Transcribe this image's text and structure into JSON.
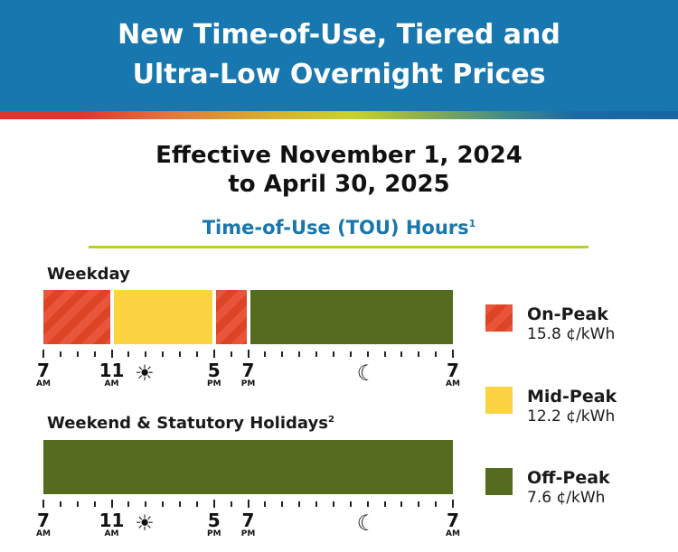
{
  "header": {
    "line1": "New Time-of-Use, Tiered and",
    "line2": "Ultra-Low Overnight Prices"
  },
  "effective": {
    "line1": "Effective November 1, 2024",
    "line2": "to April 30, 2025"
  },
  "tou_heading": {
    "text": "Time-of-Use (TOU) Hours",
    "footnote": "1"
  },
  "weekday": {
    "label": "Weekday",
    "segments": [
      {
        "tier": "on",
        "start": 7,
        "end": 11
      },
      {
        "tier": "mid",
        "start": 11,
        "end": 17
      },
      {
        "tier": "on",
        "start": 17,
        "end": 19
      },
      {
        "tier": "off",
        "start": 19,
        "end": 31
      }
    ]
  },
  "weekend": {
    "label": "Weekend & Statutory Holidays",
    "footnote": "2",
    "segments": [
      {
        "tier": "off",
        "start": 7,
        "end": 31
      }
    ]
  },
  "axis": {
    "start_hour": 7,
    "end_hour": 31,
    "labels": [
      {
        "hour": 7,
        "num": "7",
        "ampm": "AM"
      },
      {
        "hour": 11,
        "num": "11",
        "ampm": "AM"
      },
      {
        "hour": 17,
        "num": "5",
        "ampm": "PM"
      },
      {
        "hour": 19,
        "num": "7",
        "ampm": "PM"
      },
      {
        "hour": 31,
        "num": "7",
        "ampm": "AM"
      }
    ],
    "icons": [
      {
        "hour": 13,
        "name": "sun-icon",
        "glyph": "☀"
      },
      {
        "hour": 26,
        "name": "moon-icon",
        "glyph": "☾"
      }
    ]
  },
  "legend": [
    {
      "tier": "on",
      "name": "On-Peak",
      "price": "15.8 ¢/kWh",
      "color": "#e24d30"
    },
    {
      "tier": "mid",
      "name": "Mid-Peak",
      "price": "12.2 ¢/kWh",
      "color": "#fcd442"
    },
    {
      "tier": "off",
      "name": "Off-Peak",
      "price": "7.6 ¢/kWh",
      "color": "#556b1e"
    }
  ]
}
